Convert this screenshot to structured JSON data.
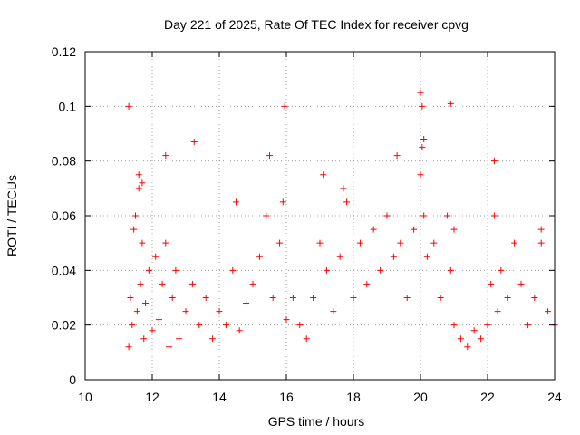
{
  "chart_data": {
    "type": "scatter",
    "title": "Day 221 of 2025, Rate Of TEC Index for receiver cpvg",
    "xlabel": "GPS time / hours",
    "ylabel": "ROTI / TECUs",
    "xlim": [
      10,
      24
    ],
    "ylim": [
      0,
      0.12
    ],
    "x_ticks": [
      "10",
      "12",
      "14",
      "16",
      "18",
      "20",
      "22",
      "24"
    ],
    "y_ticks": [
      "0",
      "0.02",
      "0.04",
      "0.06",
      "0.08",
      "0.1",
      "0.12"
    ],
    "grid": true,
    "marker": "plus",
    "color": "#ff0000",
    "series": [
      {
        "x": [
          11.3,
          11.35,
          11.4,
          11.45,
          11.5,
          11.55,
          11.6,
          11.65,
          11.7,
          11.75,
          11.8,
          11.9,
          12.0,
          12.1,
          12.2,
          12.3,
          12.4,
          12.5,
          12.6,
          12.7,
          12.8,
          13.0,
          13.2,
          13.4,
          13.6,
          13.8,
          14.0,
          14.2,
          14.4,
          14.6,
          14.8,
          15.0,
          15.2,
          15.4,
          15.6,
          15.8,
          15.9,
          16.0,
          16.2,
          16.4,
          16.6,
          16.8,
          17.0,
          17.2,
          17.4,
          17.6,
          17.8,
          18.0,
          18.2,
          18.4,
          18.6,
          18.8,
          19.0,
          19.2,
          19.4,
          19.6,
          19.8,
          20.0,
          20.05,
          20.1,
          20.2,
          20.4,
          20.6,
          20.8,
          20.9,
          21.0,
          21.2,
          21.4,
          21.6,
          21.8,
          22.0,
          22.1,
          22.2,
          22.3,
          22.4,
          22.6,
          22.8,
          23.0,
          23.2,
          23.4,
          23.6,
          23.8,
          24.0,
          11.3,
          11.6,
          11.7,
          12.4,
          13.25,
          15.5,
          15.95,
          19.3,
          20.0,
          20.05,
          20.1,
          20.9,
          22.2,
          17.1,
          17.7,
          14.5,
          21.0,
          23.6
        ],
        "y": [
          0.012,
          0.03,
          0.02,
          0.055,
          0.06,
          0.025,
          0.07,
          0.035,
          0.05,
          0.015,
          0.028,
          0.04,
          0.018,
          0.045,
          0.022,
          0.035,
          0.05,
          0.012,
          0.03,
          0.04,
          0.015,
          0.025,
          0.035,
          0.02,
          0.03,
          0.015,
          0.025,
          0.02,
          0.04,
          0.018,
          0.028,
          0.035,
          0.045,
          0.06,
          0.03,
          0.05,
          0.065,
          0.022,
          0.03,
          0.02,
          0.015,
          0.03,
          0.05,
          0.04,
          0.025,
          0.045,
          0.065,
          0.03,
          0.05,
          0.035,
          0.055,
          0.04,
          0.06,
          0.045,
          0.05,
          0.03,
          0.055,
          0.075,
          0.085,
          0.06,
          0.045,
          0.05,
          0.03,
          0.06,
          0.04,
          0.02,
          0.015,
          0.012,
          0.018,
          0.015,
          0.02,
          0.035,
          0.06,
          0.025,
          0.04,
          0.03,
          0.05,
          0.035,
          0.02,
          0.03,
          0.05,
          0.025,
          0.02,
          0.1,
          0.075,
          0.072,
          0.082,
          0.087,
          0.082,
          0.1,
          0.082,
          0.105,
          0.1,
          0.088,
          0.101,
          0.08,
          0.075,
          0.07,
          0.065,
          0.055,
          0.055
        ]
      }
    ]
  }
}
